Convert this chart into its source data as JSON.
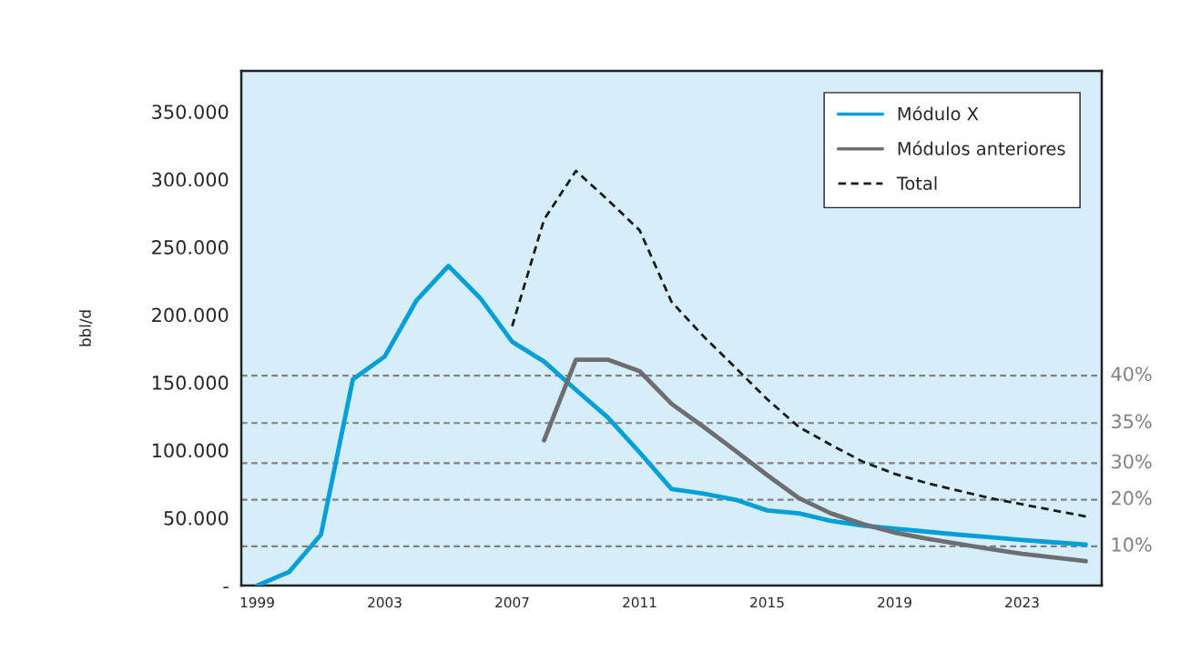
{
  "chart_data": {
    "type": "line",
    "ylabel": "bbl/d",
    "categories": [
      "1999",
      null,
      null,
      null,
      "2003",
      null,
      null,
      null,
      "2007",
      null,
      null,
      null,
      "2011",
      null,
      null,
      null,
      "2015",
      null,
      null,
      null,
      "2019",
      null,
      null,
      null,
      "2023",
      null,
      null
    ],
    "series": [
      {
        "name": "Módulo X",
        "color": "#009fda",
        "line_style": "solid",
        "values": [
          0,
          10000,
          37600,
          152200,
          169100,
          210600,
          236000,
          212200,
          180000,
          165400,
          144500,
          124100,
          98300,
          71300,
          67900,
          63400,
          55500,
          53300,
          47700,
          44300,
          42000,
          39800,
          37600,
          35700,
          33700,
          31900,
          30300
        ]
      },
      {
        "name": "Módulos anteriores",
        "color": "#6d6e71",
        "line_style": "solid",
        "values": [
          null,
          null,
          null,
          null,
          null,
          null,
          null,
          null,
          null,
          107200,
          166800,
          166800,
          158300,
          134200,
          117300,
          99600,
          81600,
          64500,
          53300,
          45400,
          39100,
          34600,
          30800,
          27000,
          23400,
          20700,
          18000
        ]
      },
      {
        "name": "Total",
        "color": "#1a1a1a",
        "line_style": "dashed",
        "values": [
          null,
          null,
          null,
          null,
          null,
          null,
          null,
          null,
          191500,
          270200,
          306200,
          284800,
          262300,
          209500,
          184100,
          161000,
          137600,
          117000,
          103900,
          91500,
          82500,
          75700,
          70100,
          64500,
          60000,
          55500,
          51000
        ]
      }
    ],
    "ylim": [
      0,
      380000
    ],
    "yticks": [
      {
        "value": 0,
        "label": "-"
      },
      {
        "value": 50000,
        "label": "50.000"
      },
      {
        "value": 100000,
        "label": "100.000"
      },
      {
        "value": 150000,
        "label": "150.000"
      },
      {
        "value": 200000,
        "label": "200.000"
      },
      {
        "value": 250000,
        "label": "250.000"
      },
      {
        "value": 300000,
        "label": "300.000"
      },
      {
        "value": 350000,
        "label": "350.000"
      }
    ],
    "ref_lines": [
      {
        "axis": "y",
        "value": 155000,
        "color": "#808080",
        "line_style": "dashed"
      },
      {
        "axis": "y",
        "value": 120000,
        "color": "#808080",
        "line_style": "dashed"
      },
      {
        "axis": "y",
        "value": 90400,
        "color": "#808080",
        "line_style": "dashed"
      },
      {
        "axis": "y",
        "value": 63400,
        "color": "#808080",
        "line_style": "dashed"
      },
      {
        "axis": "y",
        "value": 29000,
        "color": "#808080",
        "line_style": "dashed"
      }
    ],
    "annotations": [
      "40%",
      "35%",
      "30%",
      "20%",
      "10%"
    ],
    "grid": false,
    "legend": "top right",
    "marker": "none"
  }
}
